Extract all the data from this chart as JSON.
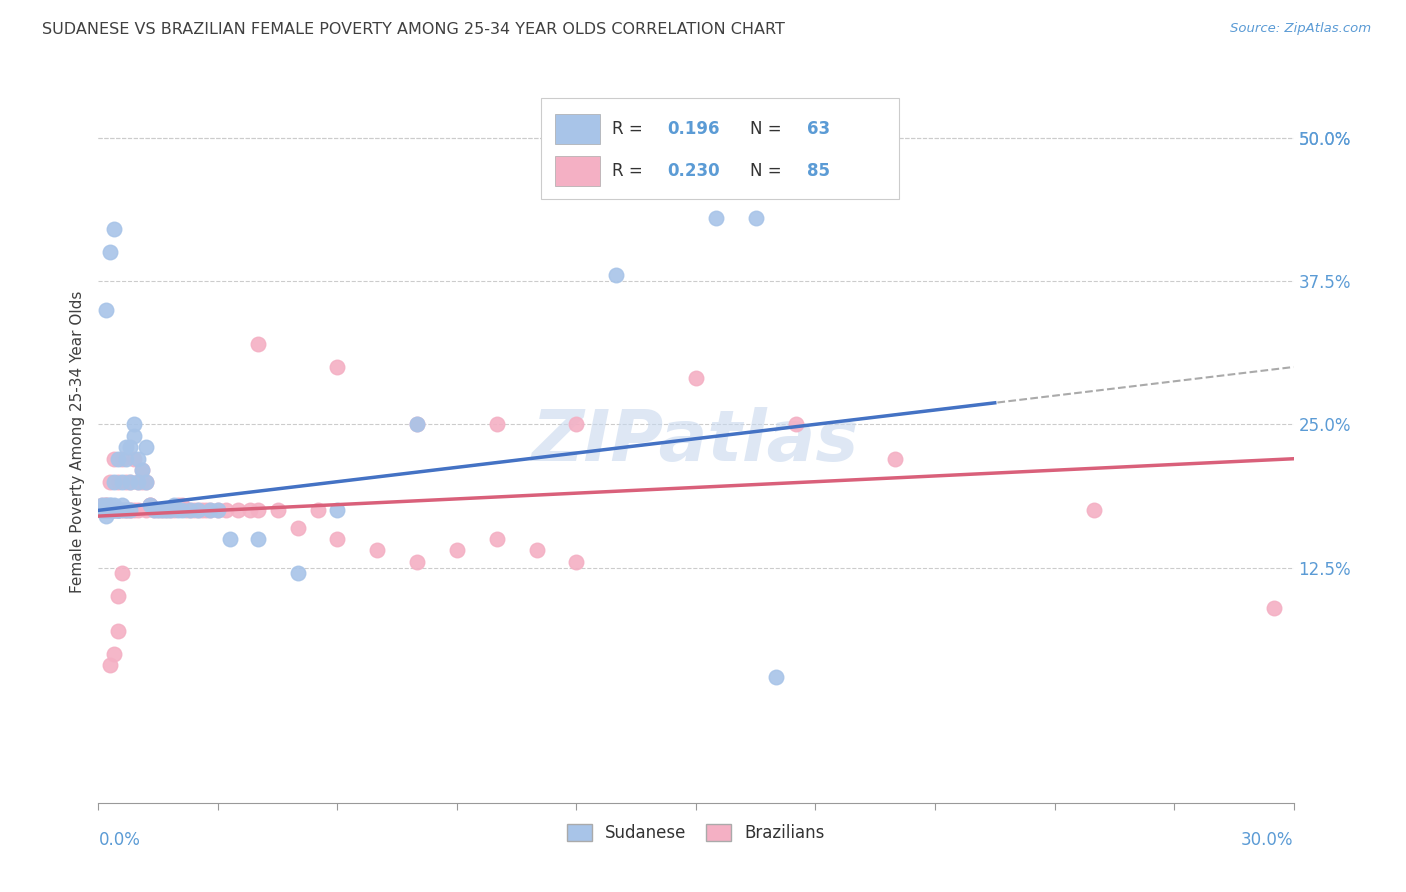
{
  "title": "SUDANESE VS BRAZILIAN FEMALE POVERTY AMONG 25-34 YEAR OLDS CORRELATION CHART",
  "source": "Source: ZipAtlas.com",
  "ylabel": "Female Poverty Among 25-34 Year Olds",
  "right_yticks": [
    "50.0%",
    "37.5%",
    "25.0%",
    "12.5%"
  ],
  "right_ytick_vals": [
    0.5,
    0.375,
    0.25,
    0.125
  ],
  "xlim": [
    0.0,
    0.3
  ],
  "ylim": [
    -0.08,
    0.55
  ],
  "sudanese_R": "0.196",
  "sudanese_N": "63",
  "brazilian_R": "0.230",
  "brazilian_N": "85",
  "sudanese_color": "#a8c4e8",
  "sudanese_line_color": "#4472c4",
  "brazilian_color": "#f4b0c4",
  "brazilian_line_color": "#d9607a",
  "background_color": "#ffffff",
  "grid_color": "#cccccc",
  "title_color": "#404040",
  "watermark_color": "#c8d8ee",
  "accent_color": "#5b9bd5",
  "sud_x": [
    0.001,
    0.001,
    0.001,
    0.002,
    0.002,
    0.002,
    0.002,
    0.003,
    0.003,
    0.003,
    0.003,
    0.003,
    0.004,
    0.004,
    0.004,
    0.004,
    0.005,
    0.005,
    0.005,
    0.005,
    0.005,
    0.006,
    0.006,
    0.006,
    0.007,
    0.007,
    0.007,
    0.008,
    0.008,
    0.008,
    0.009,
    0.009,
    0.01,
    0.01,
    0.011,
    0.012,
    0.012,
    0.013,
    0.014,
    0.015,
    0.016,
    0.017,
    0.018,
    0.019,
    0.02,
    0.021,
    0.023,
    0.025,
    0.028,
    0.03,
    0.033,
    0.04,
    0.05,
    0.06,
    0.08,
    0.13,
    0.155,
    0.165,
    0.17,
    0.002,
    0.003,
    0.004,
    0.002
  ],
  "sud_y": [
    0.175,
    0.175,
    0.18,
    0.175,
    0.175,
    0.175,
    0.18,
    0.175,
    0.175,
    0.175,
    0.18,
    0.18,
    0.175,
    0.175,
    0.18,
    0.2,
    0.175,
    0.175,
    0.175,
    0.175,
    0.22,
    0.175,
    0.18,
    0.2,
    0.175,
    0.22,
    0.23,
    0.175,
    0.2,
    0.23,
    0.24,
    0.25,
    0.2,
    0.22,
    0.21,
    0.2,
    0.23,
    0.18,
    0.175,
    0.175,
    0.175,
    0.175,
    0.175,
    0.18,
    0.175,
    0.175,
    0.175,
    0.175,
    0.175,
    0.175,
    0.15,
    0.15,
    0.12,
    0.175,
    0.25,
    0.38,
    0.43,
    0.43,
    0.03,
    0.35,
    0.4,
    0.42,
    0.17
  ],
  "bra_x": [
    0.001,
    0.001,
    0.001,
    0.001,
    0.002,
    0.002,
    0.002,
    0.002,
    0.002,
    0.002,
    0.003,
    0.003,
    0.003,
    0.003,
    0.004,
    0.004,
    0.004,
    0.004,
    0.005,
    0.005,
    0.005,
    0.005,
    0.006,
    0.006,
    0.007,
    0.007,
    0.007,
    0.008,
    0.008,
    0.008,
    0.009,
    0.009,
    0.01,
    0.01,
    0.011,
    0.011,
    0.012,
    0.012,
    0.013,
    0.013,
    0.014,
    0.015,
    0.016,
    0.017,
    0.018,
    0.019,
    0.02,
    0.021,
    0.022,
    0.023,
    0.024,
    0.025,
    0.026,
    0.027,
    0.028,
    0.03,
    0.032,
    0.035,
    0.038,
    0.04,
    0.045,
    0.05,
    0.055,
    0.06,
    0.07,
    0.08,
    0.09,
    0.1,
    0.11,
    0.12,
    0.04,
    0.06,
    0.08,
    0.1,
    0.12,
    0.15,
    0.175,
    0.2,
    0.25,
    0.295,
    0.003,
    0.004,
    0.005,
    0.005,
    0.006
  ],
  "bra_y": [
    0.175,
    0.175,
    0.175,
    0.18,
    0.175,
    0.175,
    0.175,
    0.175,
    0.18,
    0.18,
    0.175,
    0.175,
    0.175,
    0.2,
    0.175,
    0.175,
    0.175,
    0.22,
    0.175,
    0.175,
    0.175,
    0.2,
    0.175,
    0.22,
    0.175,
    0.175,
    0.2,
    0.175,
    0.175,
    0.2,
    0.175,
    0.22,
    0.175,
    0.2,
    0.2,
    0.21,
    0.175,
    0.2,
    0.18,
    0.18,
    0.175,
    0.175,
    0.175,
    0.175,
    0.175,
    0.175,
    0.18,
    0.18,
    0.175,
    0.175,
    0.175,
    0.175,
    0.175,
    0.175,
    0.175,
    0.175,
    0.175,
    0.175,
    0.175,
    0.175,
    0.175,
    0.16,
    0.175,
    0.15,
    0.14,
    0.13,
    0.14,
    0.15,
    0.14,
    0.13,
    0.32,
    0.3,
    0.25,
    0.25,
    0.25,
    0.29,
    0.25,
    0.22,
    0.175,
    0.09,
    0.04,
    0.05,
    0.07,
    0.1,
    0.12
  ]
}
